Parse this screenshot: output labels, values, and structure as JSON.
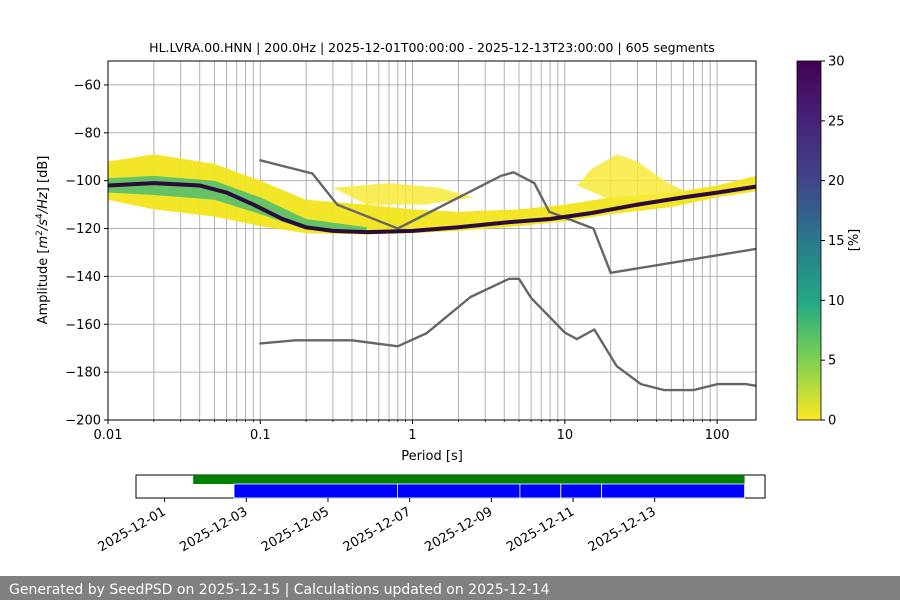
{
  "chart_data": {
    "type": "heatmap",
    "title": "HL.LVRA.00.HNN | 200.0Hz | 2025-12-01T00:00:00 - 2025-12-13T23:00:00 | 605 segments",
    "xlabel": "Period [s]",
    "ylabel_parts": [
      "Amplitude [",
      "m",
      "2",
      "/",
      "s",
      "4",
      "/",
      "Hz",
      "] [dB]"
    ],
    "xscale": "log",
    "xlim": [
      0.01,
      180
    ],
    "ylim": [
      -200,
      -50
    ],
    "x_ticks": [
      {
        "value": 0.01,
        "label": "0.01"
      },
      {
        "value": 0.1,
        "label": "0.1"
      },
      {
        "value": 1,
        "label": "1"
      },
      {
        "value": 10,
        "label": "10"
      },
      {
        "value": 100,
        "label": "100"
      }
    ],
    "y_ticks": [
      {
        "value": -60,
        "label": "−60"
      },
      {
        "value": -80,
        "label": "−80"
      },
      {
        "value": -100,
        "label": "−100"
      },
      {
        "value": -120,
        "label": "−120"
      },
      {
        "value": -140,
        "label": "−140"
      },
      {
        "value": -160,
        "label": "−160"
      },
      {
        "value": -180,
        "label": "−180"
      },
      {
        "value": -200,
        "label": "−200"
      }
    ],
    "vertical_grid_periods": [
      0.02,
      0.03,
      0.04,
      0.05,
      0.06,
      0.07,
      0.08,
      0.09,
      0.1,
      0.2,
      0.3,
      0.4,
      0.5,
      0.6,
      0.7,
      0.8,
      0.9,
      1,
      2,
      3,
      4,
      5,
      6,
      7,
      8,
      9,
      10,
      20,
      30,
      40,
      50,
      60,
      70,
      80,
      90,
      100
    ],
    "colorbar": {
      "label": "[%]",
      "range": [
        0,
        30
      ],
      "ticks": [
        {
          "value": 0,
          "label": "0"
        },
        {
          "value": 5,
          "label": "5"
        },
        {
          "value": 10,
          "label": "10"
        },
        {
          "value": 15,
          "label": "15"
        },
        {
          "value": 20,
          "label": "20"
        },
        {
          "value": 25,
          "label": "25"
        },
        {
          "value": 30,
          "label": "30"
        }
      ]
    },
    "series": [
      {
        "name": "noise-model-high",
        "color": "#666666",
        "points": [
          [
            0.1,
            -91.5
          ],
          [
            0.22,
            -97
          ],
          [
            0.32,
            -110
          ],
          [
            0.8,
            -120
          ],
          [
            3.8,
            -98
          ],
          [
            4.6,
            -96.5
          ],
          [
            6.3,
            -101
          ],
          [
            7.9,
            -113
          ],
          [
            15.4,
            -120
          ],
          [
            20,
            -138.5
          ],
          [
            180,
            -128.5
          ]
        ]
      },
      {
        "name": "noise-model-low",
        "color": "#666666",
        "points": [
          [
            0.1,
            -168
          ],
          [
            0.17,
            -166.7
          ],
          [
            0.4,
            -166.7
          ],
          [
            0.8,
            -169.2
          ],
          [
            1.24,
            -163.7
          ],
          [
            2.4,
            -148.6
          ],
          [
            4.3,
            -141
          ],
          [
            5.0,
            -141
          ],
          [
            6.0,
            -149
          ],
          [
            10,
            -163.5
          ],
          [
            12,
            -166.2
          ],
          [
            15.6,
            -162.2
          ],
          [
            21.9,
            -177.5
          ],
          [
            31.6,
            -185
          ],
          [
            45,
            -187.5
          ],
          [
            70,
            -187.5
          ],
          [
            101,
            -185
          ],
          [
            154,
            -185
          ],
          [
            180,
            -185.7
          ]
        ]
      },
      {
        "name": "psd-mode",
        "color": "#2b0a3d",
        "points": [
          [
            0.01,
            -102
          ],
          [
            0.02,
            -101
          ],
          [
            0.04,
            -102
          ],
          [
            0.06,
            -105
          ],
          [
            0.09,
            -110
          ],
          [
            0.14,
            -116
          ],
          [
            0.2,
            -119.5
          ],
          [
            0.3,
            -121
          ],
          [
            0.5,
            -121.5
          ],
          [
            1,
            -121
          ],
          [
            2,
            -119.5
          ],
          [
            4,
            -117.5
          ],
          [
            8,
            -116
          ],
          [
            15,
            -113.5
          ],
          [
            30,
            -110
          ],
          [
            60,
            -107
          ],
          [
            100,
            -105
          ],
          [
            180,
            -102.5
          ]
        ]
      }
    ],
    "heatmap_bands": [
      {
        "name": "band-upper",
        "points": [
          [
            0.01,
            -92
          ],
          [
            0.02,
            -89
          ],
          [
            0.05,
            -93
          ],
          [
            0.1,
            -100
          ],
          [
            0.2,
            -108
          ],
          [
            0.5,
            -110
          ],
          [
            1,
            -112
          ],
          [
            2,
            -113
          ],
          [
            5,
            -112
          ],
          [
            10,
            -110
          ],
          [
            20,
            -107
          ],
          [
            50,
            -105
          ],
          [
            100,
            -102
          ],
          [
            180,
            -98
          ]
        ],
        "lower_points": [
          [
            0.01,
            -108
          ],
          [
            0.02,
            -112
          ],
          [
            0.05,
            -115
          ],
          [
            0.1,
            -119
          ],
          [
            0.2,
            -122
          ],
          [
            0.5,
            -122.5
          ],
          [
            1,
            -122
          ],
          [
            2,
            -121
          ],
          [
            5,
            -119
          ],
          [
            10,
            -117
          ],
          [
            20,
            -114
          ],
          [
            50,
            -111
          ],
          [
            100,
            -107
          ],
          [
            180,
            -104.5
          ]
        ]
      }
    ],
    "heatmap_cores": [
      {
        "name": "band-core",
        "points": [
          [
            0.01,
            -99
          ],
          [
            0.02,
            -98
          ],
          [
            0.05,
            -100
          ],
          [
            0.1,
            -107
          ],
          [
            0.2,
            -116
          ],
          [
            0.5,
            -119.5
          ]
        ],
        "lower_points": [
          [
            0.01,
            -105
          ],
          [
            0.02,
            -106
          ],
          [
            0.05,
            -108
          ],
          [
            0.1,
            -114
          ],
          [
            0.2,
            -120.5
          ],
          [
            0.5,
            -121.5
          ]
        ]
      }
    ],
    "heatmap_blobs": [
      {
        "name": "blob-microseism",
        "points": [
          [
            15,
            -95
          ],
          [
            22,
            -89
          ],
          [
            30,
            -92
          ],
          [
            45,
            -100
          ],
          [
            60,
            -104
          ],
          [
            40,
            -108
          ],
          [
            20,
            -108
          ],
          [
            12,
            -102
          ]
        ]
      },
      {
        "name": "blob-mid",
        "points": [
          [
            0.3,
            -103
          ],
          [
            0.7,
            -101
          ],
          [
            1.5,
            -103
          ],
          [
            2.5,
            -107
          ],
          [
            1.2,
            -110
          ],
          [
            0.5,
            -110
          ]
        ]
      }
    ],
    "availability": {
      "date_ticks": [
        "2025-12-01",
        "2025-12-03",
        "2025-12-05",
        "2025-12-07",
        "2025-12-09",
        "2025-12-11",
        "2025-12-13"
      ],
      "range_days": [
        -0.7,
        14.7
      ],
      "green_bar": {
        "color": "#008000",
        "start_day": 0.7,
        "end_day": 14.2
      },
      "blue_segments": [
        {
          "start_day": 1.7,
          "end_day": 5.7
        },
        {
          "start_day": 5.7,
          "end_day": 8.7
        },
        {
          "start_day": 8.7,
          "end_day": 9.7
        },
        {
          "start_day": 9.7,
          "end_day": 10.7
        },
        {
          "start_day": 10.7,
          "end_day": 14.2
        }
      ],
      "blue_color": "#0000ff"
    }
  },
  "footer": {
    "text": "Generated by SeedPSD on 2025-12-15 | Calculations updated on 2025-12-14"
  }
}
